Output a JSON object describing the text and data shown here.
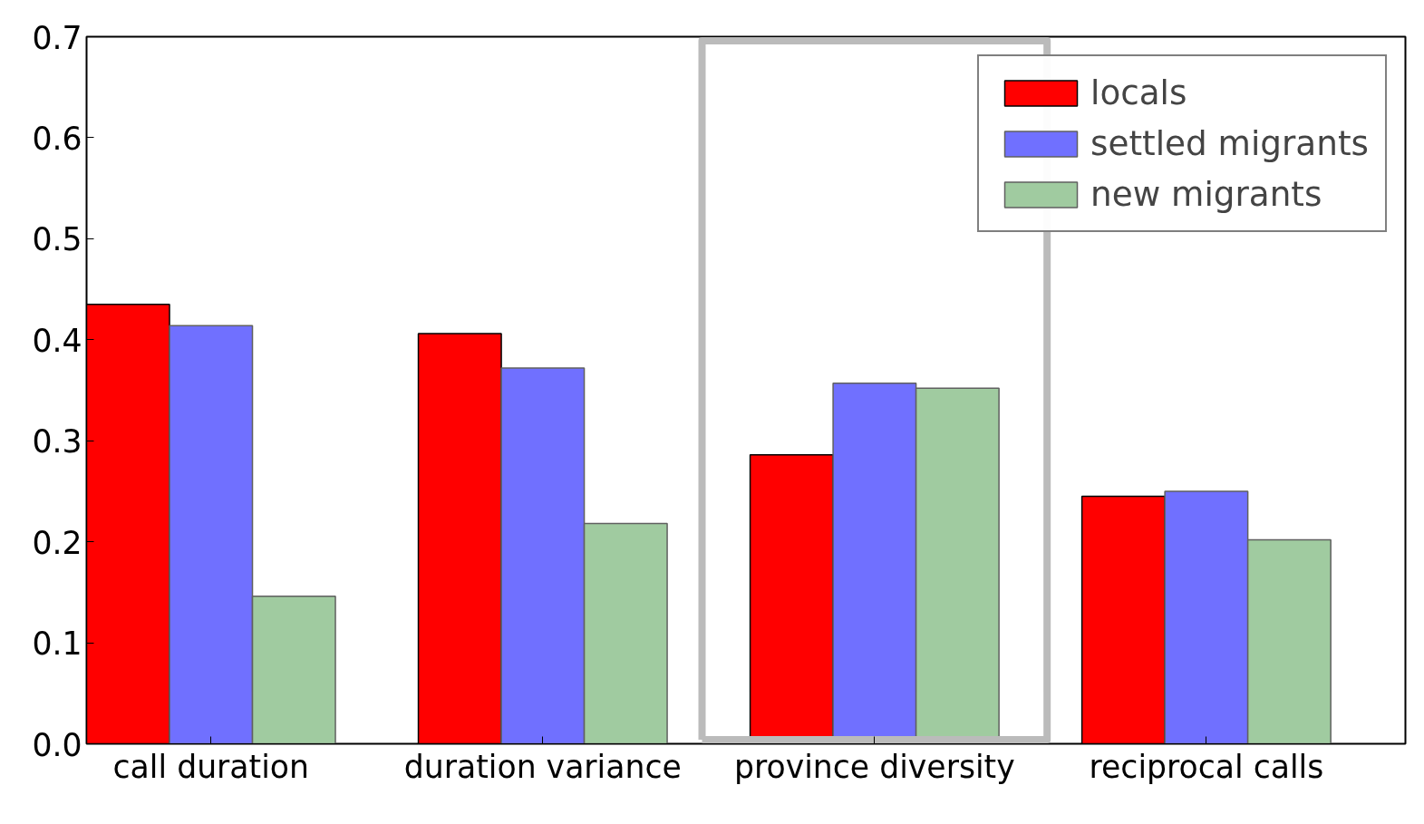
{
  "chart_data": {
    "type": "bar",
    "categories": [
      "call duration",
      "duration variance",
      "province diversity",
      "reciprocal calls"
    ],
    "series": [
      {
        "name": "locals",
        "color": "#ff0000",
        "values": [
          0.435,
          0.406,
          0.286,
          0.245
        ]
      },
      {
        "name": "settled migrants",
        "color": "#7070ff",
        "values": [
          0.414,
          0.372,
          0.357,
          0.25
        ]
      },
      {
        "name": "new migrants",
        "color": "#a0cba0",
        "values": [
          0.146,
          0.218,
          0.352,
          0.202
        ]
      }
    ],
    "ylim": [
      0,
      0.7
    ],
    "yticks": [
      {
        "value": 0,
        "label": "0.0"
      },
      0.1,
      0.2,
      0.3,
      0.4,
      0.5,
      0.6,
      0.7
    ],
    "legend": "top right"
  }
}
